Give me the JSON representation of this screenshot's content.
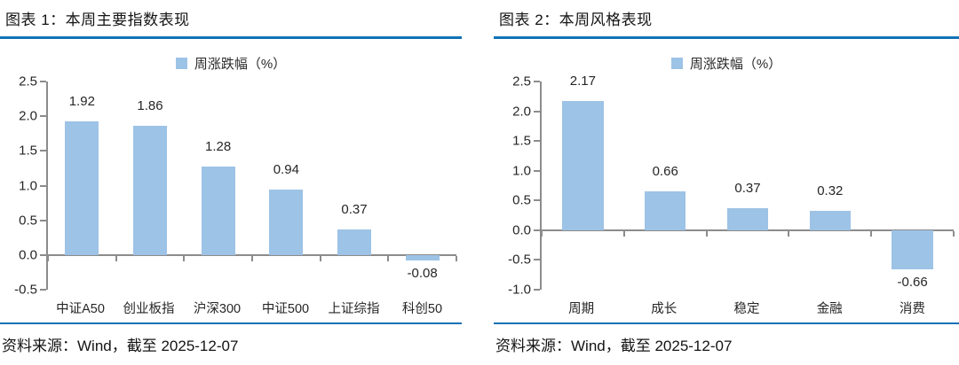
{
  "colors": {
    "bar_fill": "#9DC3E6",
    "rule_blue": "#1272B6",
    "axis_gray": "#8C8C8C",
    "text_dark": "#1F1F1F"
  },
  "panels": [
    {
      "title": "图表  1：本周主要指数表现",
      "source": "资料来源：Wind，截至  2025-12-07"
    },
    {
      "title": "图表  2：本周风格表现",
      "source": "资料来源：Wind，截至  2025-12-07"
    }
  ],
  "chart_data": [
    {
      "type": "bar",
      "title": "本周主要指数表现",
      "legend": [
        "周涨跌幅（%）"
      ],
      "legend_position": "top",
      "categories": [
        "中证A50",
        "创业板指",
        "沪深300",
        "中证500",
        "上证综指",
        "科创50"
      ],
      "values": [
        1.92,
        1.86,
        1.28,
        0.94,
        0.37,
        -0.08
      ],
      "xlabel": "",
      "ylabel": "",
      "ylim": [
        -0.5,
        2.5
      ],
      "ytick_step": 0.5,
      "grid": false
    },
    {
      "type": "bar",
      "title": "本周风格表现",
      "legend": [
        "周涨跌幅（%）"
      ],
      "legend_position": "top",
      "categories": [
        "周期",
        "成长",
        "稳定",
        "金融",
        "消费"
      ],
      "values": [
        2.17,
        0.66,
        0.37,
        0.32,
        -0.66
      ],
      "xlabel": "",
      "ylabel": "",
      "ylim": [
        -1.0,
        2.5
      ],
      "ytick_step": 0.5,
      "grid": false
    }
  ]
}
